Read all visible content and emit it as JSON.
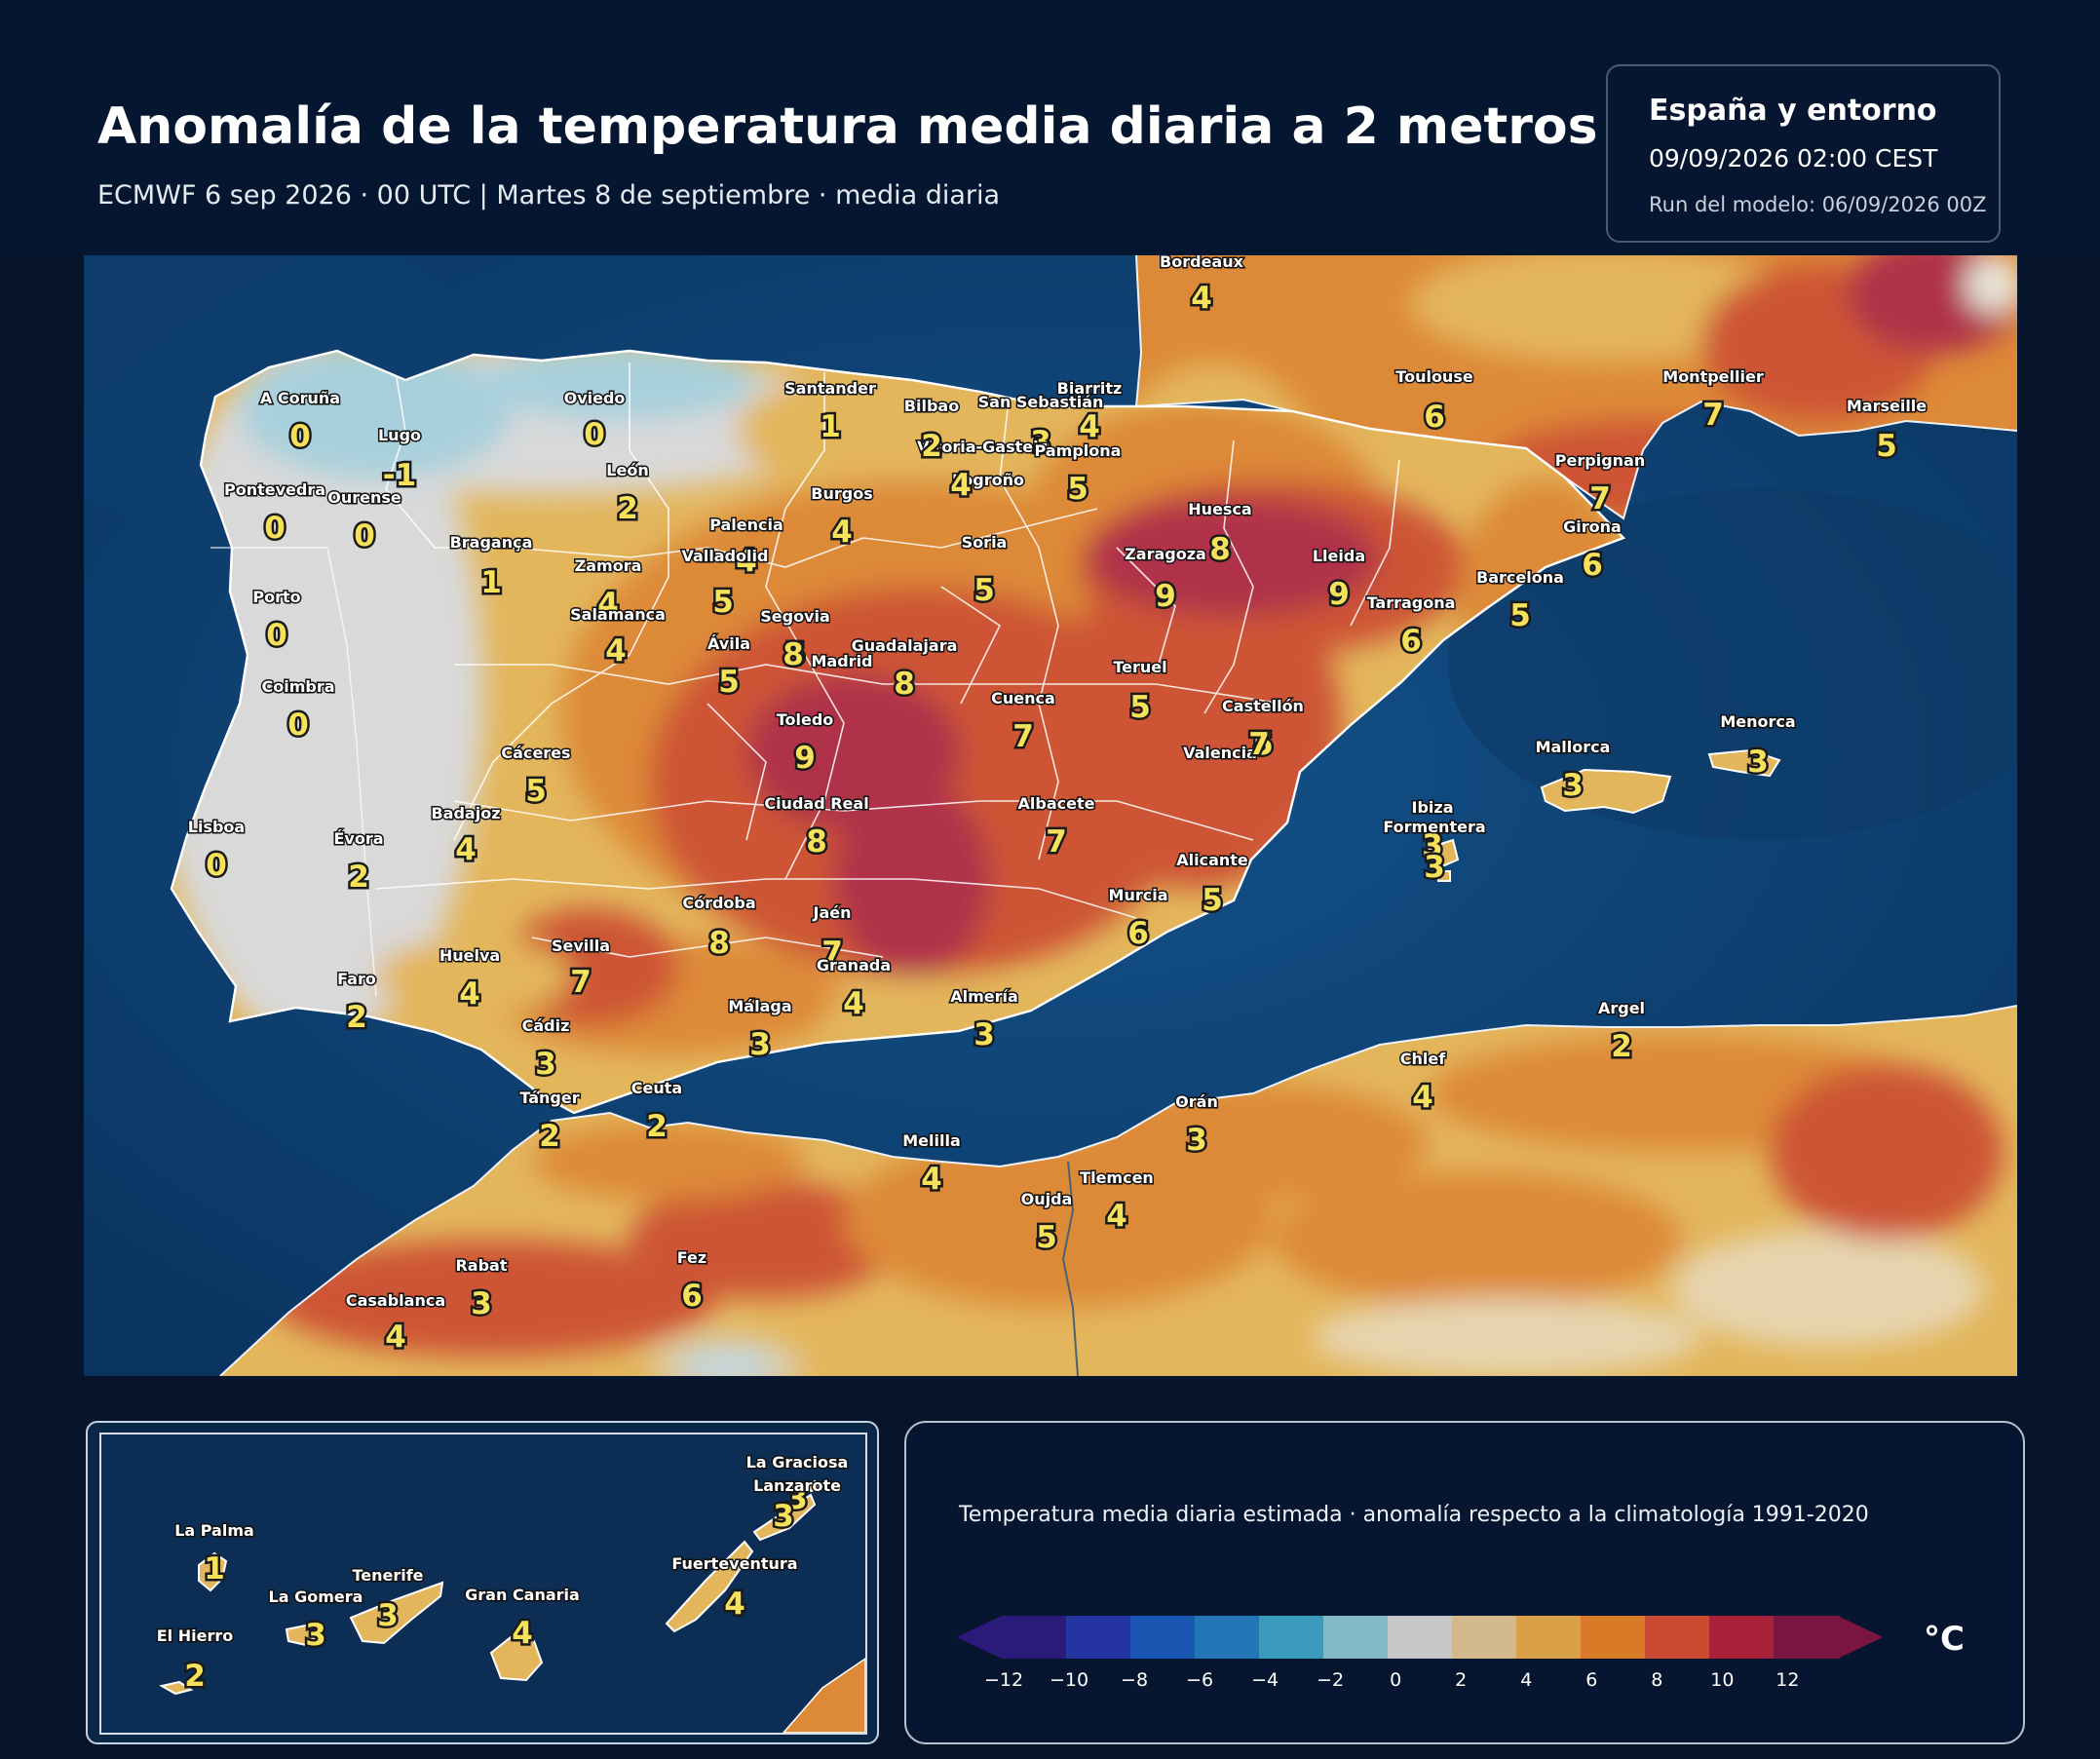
{
  "header": {
    "title": "Anomalía de la temperatura media diaria a 2 metros",
    "subtitle": "ECMWF 6 sep 2026 · 00 UTC  |  Martes 8 de septiembre · media diaria"
  },
  "info": {
    "region": "España y entorno",
    "valid": "09/09/2026  02:00 CEST",
    "run": "Run del modelo: 06/09/2026 00Z"
  },
  "cities": [
    {
      "name": "Bordeaux",
      "value": "4"
    },
    {
      "name": "A Coruña",
      "value": "0"
    },
    {
      "name": "Oviedo",
      "value": "0"
    },
    {
      "name": "Santander",
      "value": "1"
    },
    {
      "name": "Bilbao",
      "value": "2"
    },
    {
      "name": "San Sebastián",
      "value": "3"
    },
    {
      "name": "Biarritz",
      "value": "4"
    },
    {
      "name": "Toulouse",
      "value": "6"
    },
    {
      "name": "Montpellier",
      "value": "7"
    },
    {
      "name": "Marseille",
      "value": "5"
    },
    {
      "name": "Lugo",
      "value": "-1"
    },
    {
      "name": "Vitoria-Gasteiz",
      "value": "2"
    },
    {
      "name": "Pamplona",
      "value": "5"
    },
    {
      "name": "León",
      "value": "2"
    },
    {
      "name": "Pontevedra",
      "value": "0"
    },
    {
      "name": "Ourense",
      "value": "0"
    },
    {
      "name": "Logroño",
      "value": "4"
    },
    {
      "name": "Burgos",
      "value": "4"
    },
    {
      "name": "Perpignan",
      "value": "7"
    },
    {
      "name": "Huesca",
      "value": "8"
    },
    {
      "name": "Palencia",
      "value": "4"
    },
    {
      "name": "Soria",
      "value": "5"
    },
    {
      "name": "Girona",
      "value": "6"
    },
    {
      "name": "Bragança",
      "value": "1"
    },
    {
      "name": "Zaragoza",
      "value": "9"
    },
    {
      "name": "Valladolid",
      "value": "5"
    },
    {
      "name": "Lleida",
      "value": "9"
    },
    {
      "name": "Zamora",
      "value": "4"
    },
    {
      "name": "Barcelona",
      "value": "5"
    },
    {
      "name": "Porto",
      "value": "0"
    },
    {
      "name": "Tarragona",
      "value": "6"
    },
    {
      "name": "Salamanca",
      "value": "4"
    },
    {
      "name": "Segovia",
      "value": "5"
    },
    {
      "name": "Ávila",
      "value": "5"
    },
    {
      "name": "Guadalajara",
      "value": "8"
    },
    {
      "name": "Madrid",
      "value": "8"
    },
    {
      "name": "Teruel",
      "value": "5"
    },
    {
      "name": "Coimbra",
      "value": "0"
    },
    {
      "name": "Cuenca",
      "value": "7"
    },
    {
      "name": "Castellón",
      "value": "5"
    },
    {
      "name": "Toledo",
      "value": "9"
    },
    {
      "name": "Menorca",
      "value": "3"
    },
    {
      "name": "Mallorca",
      "value": "3"
    },
    {
      "name": "Cáceres",
      "value": "5"
    },
    {
      "name": "Valencia",
      "value": "7"
    },
    {
      "name": "Ciudad Real",
      "value": "8"
    },
    {
      "name": "Albacete",
      "value": "7"
    },
    {
      "name": "Badajoz",
      "value": "4"
    },
    {
      "name": "Ibiza",
      "value": "3"
    },
    {
      "name": "Lisboa",
      "value": "0"
    },
    {
      "name": "Formentera",
      "value": "3"
    },
    {
      "name": "Évora",
      "value": "2"
    },
    {
      "name": "Alicante",
      "value": "5"
    },
    {
      "name": "Murcia",
      "value": "6"
    },
    {
      "name": "Córdoba",
      "value": "8"
    },
    {
      "name": "Jaén",
      "value": "7"
    },
    {
      "name": "Sevilla",
      "value": "7"
    },
    {
      "name": "Huelva",
      "value": "4"
    },
    {
      "name": "Granada",
      "value": "4"
    },
    {
      "name": "Faro",
      "value": "2"
    },
    {
      "name": "Almería",
      "value": "3"
    },
    {
      "name": "Málaga",
      "value": "3"
    },
    {
      "name": "Argel",
      "value": "2"
    },
    {
      "name": "Cádiz",
      "value": "3"
    },
    {
      "name": "Chlef",
      "value": "4"
    },
    {
      "name": "Ceuta",
      "value": "2"
    },
    {
      "name": "Tánger",
      "value": "2"
    },
    {
      "name": "Orán",
      "value": "3"
    },
    {
      "name": "Melilla",
      "value": "4"
    },
    {
      "name": "Tlemcen",
      "value": "4"
    },
    {
      "name": "Oujda",
      "value": "5"
    },
    {
      "name": "Rabat",
      "value": "3"
    },
    {
      "name": "Fez",
      "value": "6"
    },
    {
      "name": "Casablanca",
      "value": "4"
    }
  ],
  "canary": [
    {
      "name": "La Graciosa",
      "value": "3"
    },
    {
      "name": "Lanzarote",
      "value": "3"
    },
    {
      "name": "La Palma",
      "value": "1"
    },
    {
      "name": "Fuerteventura",
      "value": "4"
    },
    {
      "name": "Tenerife",
      "value": "3"
    },
    {
      "name": "La Gomera",
      "value": "3"
    },
    {
      "name": "Gran Canaria",
      "value": "4"
    },
    {
      "name": "El Hierro",
      "value": "2"
    }
  ],
  "legend": {
    "caption": "Temperatura media diaria estimada · anomalía respecto a la climatología 1991-2020",
    "unit": "°C",
    "ticks": [
      "−12",
      "−10",
      "−8",
      "−6",
      "−4",
      "−2",
      "0",
      "2",
      "4",
      "6",
      "8",
      "10",
      "12"
    ],
    "colors": [
      "#2a1b78",
      "#2434a0",
      "#1a55b2",
      "#2276b6",
      "#3a9bbd",
      "#84b9c9",
      "#c7c7c7",
      "#d3b98c",
      "#d9a048",
      "#d87a28",
      "#ca4a32",
      "#a8233a",
      "#7a1440"
    ]
  },
  "map_colors": {
    "sea": "#0c3a66",
    "land_neutral": "#d9d9d9",
    "cold": "#a8d0dc",
    "warm_1": "#e3b65c",
    "warm_2": "#dd8a38",
    "warm_3": "#cd5535",
    "hot": "#b03048"
  }
}
